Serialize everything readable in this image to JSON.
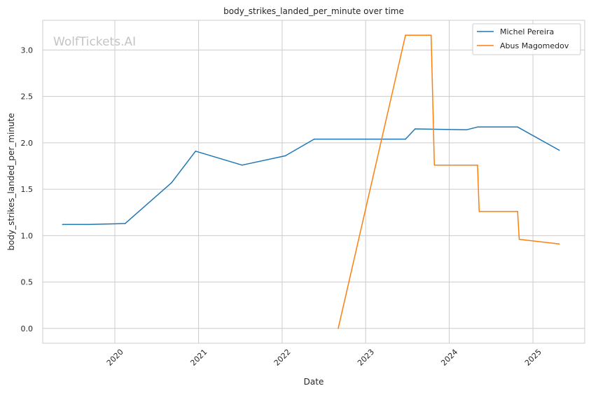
{
  "chart_data": {
    "type": "line",
    "title": "body_strikes_landed_per_minute over time",
    "xlabel": "Date",
    "ylabel": "body_strikes_landed_per_minute",
    "watermark": "WolfTickets.AI",
    "xlim": [
      "2019-02-20",
      "2025-08-15"
    ],
    "ylim": [
      -0.16,
      3.32
    ],
    "x_ticks": [
      "2020",
      "2021",
      "2022",
      "2023",
      "2024",
      "2025"
    ],
    "y_ticks": [
      "0.0",
      "0.5",
      "1.0",
      "1.5",
      "2.0",
      "2.5",
      "3.0"
    ],
    "grid": true,
    "legend_position": "top-right",
    "series": [
      {
        "name": "Michel Pereira",
        "color": "#1f77b4",
        "points": [
          [
            "2019-05-18",
            1.12
          ],
          [
            "2019-09-07",
            1.12
          ],
          [
            "2020-02-15",
            1.13
          ],
          [
            "2020-09-05",
            1.57
          ],
          [
            "2020-12-19",
            1.91
          ],
          [
            "2021-07-10",
            1.76
          ],
          [
            "2022-01-15",
            1.86
          ],
          [
            "2022-05-21",
            2.04
          ],
          [
            "2023-06-24",
            2.04
          ],
          [
            "2023-08-05",
            2.15
          ],
          [
            "2024-03-16",
            2.14
          ],
          [
            "2024-05-04",
            2.17
          ],
          [
            "2024-10-26",
            2.17
          ],
          [
            "2025-04-26",
            1.92
          ]
        ]
      },
      {
        "name": "Abus Magomedov",
        "color": "#ff7f0e",
        "points": [
          [
            "2022-09-03",
            0.0
          ],
          [
            "2023-06-24",
            3.16
          ],
          [
            "2023-10-14",
            3.16
          ],
          [
            "2023-10-28",
            1.76
          ],
          [
            "2024-05-04",
            1.76
          ],
          [
            "2024-05-11",
            1.26
          ],
          [
            "2024-10-26",
            1.26
          ],
          [
            "2024-11-02",
            0.96
          ],
          [
            "2025-04-26",
            0.91
          ]
        ]
      }
    ]
  }
}
